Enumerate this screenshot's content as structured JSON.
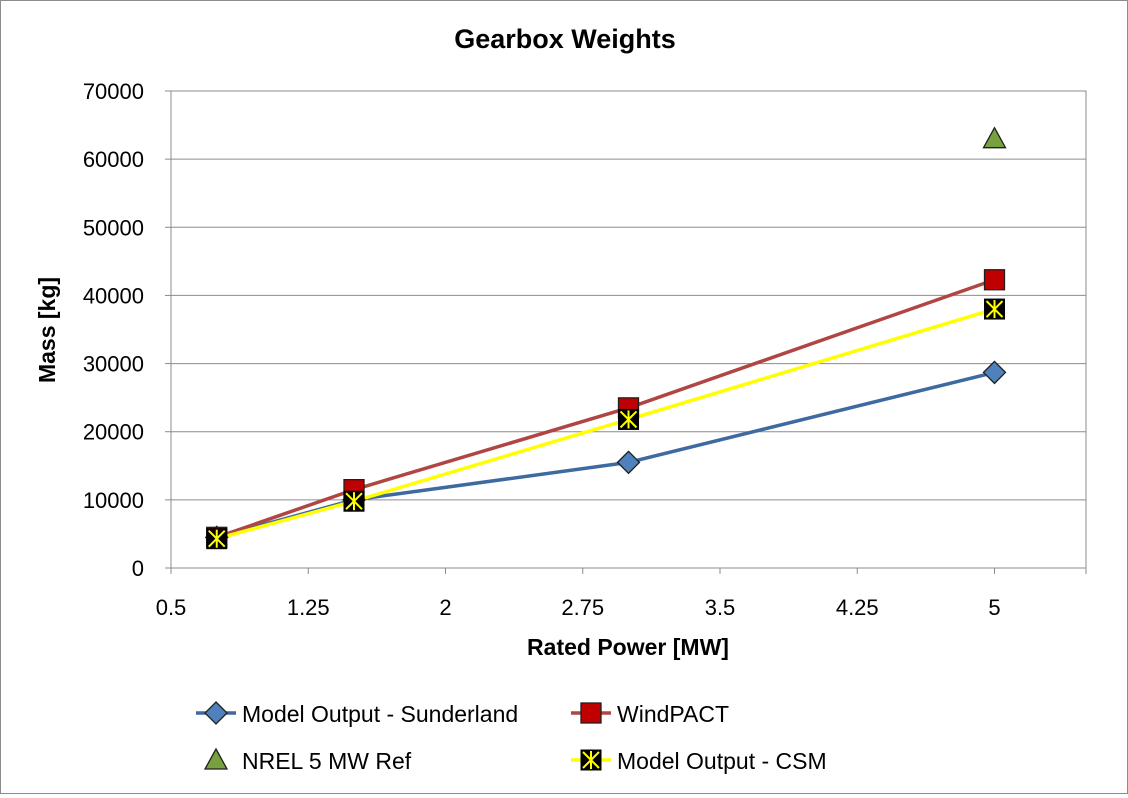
{
  "chart_data": {
    "type": "scatter",
    "title": "Gearbox Weights",
    "xlabel": "Rated Power [MW]",
    "ylabel": "Mass [kg]",
    "xlim": [
      0.5,
      5.5
    ],
    "ylim": [
      0,
      70000
    ],
    "xticks": [
      0.5,
      1.25,
      2,
      2.75,
      3.5,
      4.25,
      5
    ],
    "xtick_labels": [
      "0.5",
      "1.25",
      "2",
      "2.75",
      "3.5",
      "4.25",
      "5"
    ],
    "yticks": [
      0,
      10000,
      20000,
      30000,
      40000,
      50000,
      60000,
      70000
    ],
    "ytick_labels": [
      "0",
      "10000",
      "20000",
      "30000",
      "40000",
      "50000",
      "60000",
      "70000"
    ],
    "grid": "horizontal",
    "legend_position": "bottom",
    "series": [
      {
        "name": "Model Output - Sunderland",
        "marker": "diamond",
        "line": true,
        "color": "#4f81bd",
        "line_color": "#3d6aa0",
        "points": [
          [
            0.75,
            4500
          ],
          [
            1.5,
            10000
          ],
          [
            3.0,
            15500
          ],
          [
            5.0,
            28700
          ]
        ]
      },
      {
        "name": "WindPACT",
        "marker": "square",
        "line": true,
        "color": "#c00000",
        "line_color": "#b04644",
        "points": [
          [
            0.75,
            4500
          ],
          [
            1.5,
            11500
          ],
          [
            3.0,
            23500
          ],
          [
            5.0,
            42300
          ]
        ]
      },
      {
        "name": "NREL 5 MW Ref",
        "marker": "triangle",
        "line": false,
        "color": "#77a03e",
        "points": [
          [
            5.0,
            63000
          ]
        ]
      },
      {
        "name": "Model Output - CSM",
        "marker": "x-box",
        "line": true,
        "color": "#ffff00",
        "line_color": "#ffff00",
        "points": [
          [
            0.75,
            4300
          ],
          [
            1.5,
            9800
          ],
          [
            3.0,
            21800
          ],
          [
            5.0,
            38000
          ]
        ]
      }
    ]
  }
}
